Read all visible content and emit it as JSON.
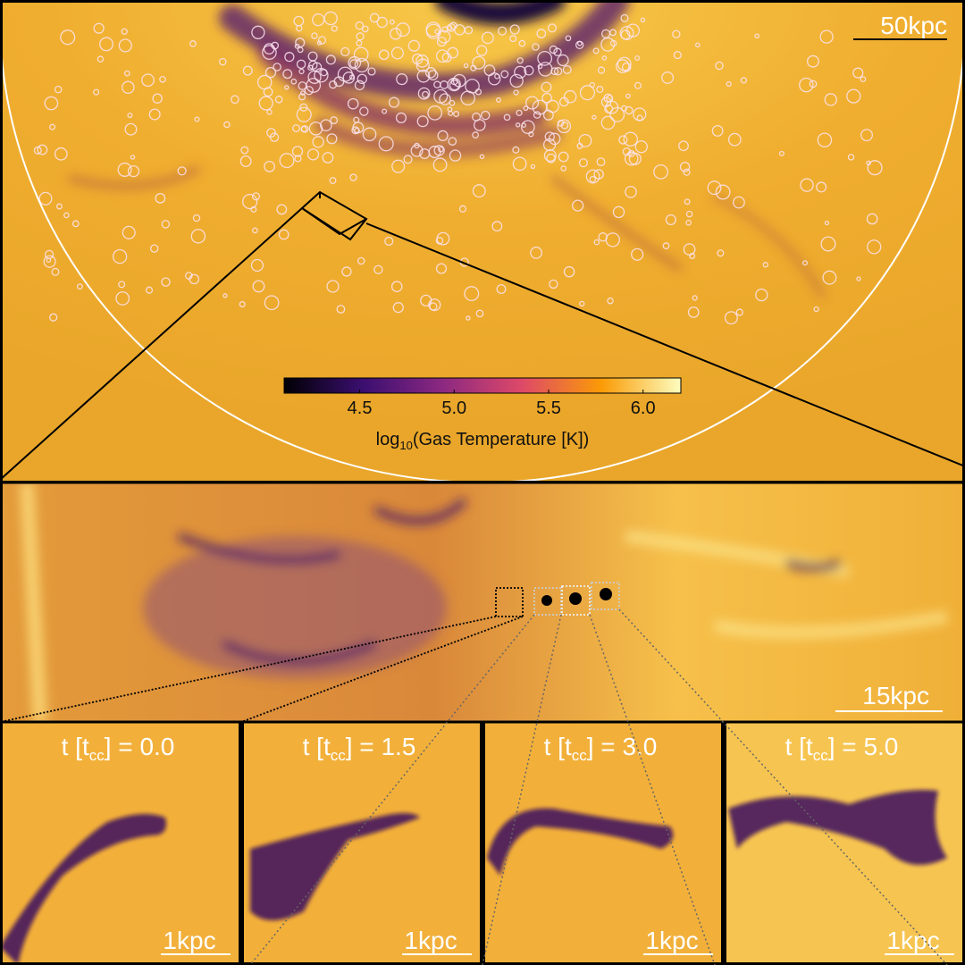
{
  "top_panel": {
    "scale_bar": "50kpc"
  },
  "colorbar": {
    "lim": [
      4.1,
      6.2
    ],
    "ticks": [
      4.5,
      {
        "value": 5,
        "label": "5.0"
      },
      5.5,
      {
        "value": 6,
        "label": "6.0"
      }
    ],
    "label": {
      "pre": "log",
      "sub": "10",
      "post": "(Gas Temperature [K])"
    }
  },
  "middle_panel": {
    "scale_bar": "15kpc"
  },
  "bottom_panels": [
    {
      "label": {
        "pre": "t [t",
        "sub": "cc",
        "post": "] = 0.0"
      },
      "scale_bar": "1kpc"
    },
    {
      "label": {
        "pre": "t [t",
        "sub": "cc",
        "post": "] = 1.5"
      },
      "scale_bar": "1kpc"
    },
    {
      "label": {
        "pre": "t [t",
        "sub": "cc",
        "post": "] = 3.0"
      },
      "scale_bar": "1kpc"
    },
    {
      "label": {
        "pre": "t [t",
        "sub": "cc",
        "post": "] = 5.0"
      },
      "scale_bar": "1kpc"
    }
  ]
}
